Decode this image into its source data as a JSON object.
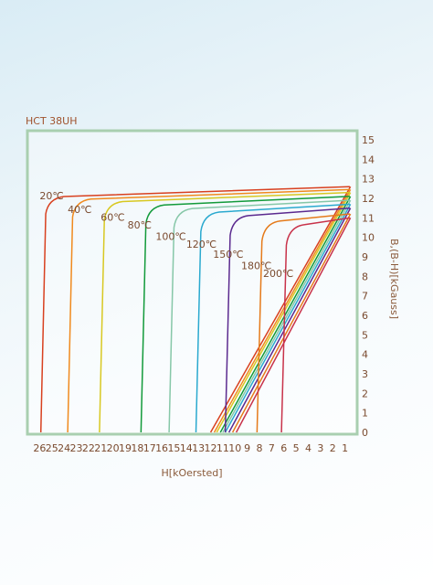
{
  "chart_data": {
    "type": "line",
    "title": "HCT 38UH",
    "xlabel": "H[kOersted]",
    "ylabel": "B,(B-H)[kGauss]",
    "x_direction": "reversed",
    "xlim": [
      0,
      27
    ],
    "ylim": [
      0,
      15
    ],
    "x_ticks": [
      26,
      25,
      24,
      23,
      22,
      21,
      20,
      19,
      18,
      17,
      16,
      15,
      14,
      13,
      12,
      11,
      10,
      9,
      8,
      7,
      6,
      5,
      4,
      3,
      2,
      1
    ],
    "y_ticks": [
      0,
      1,
      2,
      3,
      4,
      5,
      6,
      7,
      8,
      9,
      10,
      11,
      12,
      13,
      14,
      15
    ],
    "plot_border_color": "#a9cfb0",
    "series": [
      {
        "name": "20℃",
        "color": "#d8401f",
        "hcj": 25.5,
        "knee": 12.0,
        "br": 12.6,
        "hcb": 12.0,
        "label_pos": [
          26.0,
          12.1
        ]
      },
      {
        "name": "40℃",
        "color": "#f08a1e",
        "hcj": 23.3,
        "knee": 11.7,
        "br": 12.45,
        "hcb": 11.7,
        "label_pos": [
          23.7,
          11.4
        ]
      },
      {
        "name": "60℃",
        "color": "#d8c821",
        "hcj": 20.7,
        "knee": 11.5,
        "br": 12.3,
        "hcb": 11.5,
        "label_pos": [
          21.0,
          11.0
        ]
      },
      {
        "name": "80℃",
        "color": "#129a3a",
        "hcj": 17.3,
        "knee": 11.2,
        "br": 12.1,
        "hcb": 11.2,
        "label_pos": [
          18.8,
          10.6
        ]
      },
      {
        "name": "100℃",
        "color": "#86c7a8",
        "hcj": 15.0,
        "knee": 11.0,
        "br": 11.9,
        "hcb": 11.0,
        "label_pos": [
          16.5,
          10.0
        ]
      },
      {
        "name": "120℃",
        "color": "#2aa9cf",
        "hcj": 12.8,
        "knee": 10.8,
        "br": 11.7,
        "hcb": 10.8,
        "label_pos": [
          14.0,
          9.6
        ]
      },
      {
        "name": "150℃",
        "color": "#5b2a8f",
        "hcj": 10.4,
        "knee": 10.5,
        "br": 11.5,
        "hcb": 10.5,
        "label_pos": [
          11.8,
          9.1
        ]
      },
      {
        "name": "180℃",
        "color": "#e57a1a",
        "hcj": 7.8,
        "knee": 10.2,
        "br": 11.2,
        "hcb": 10.2,
        "label_pos": [
          9.5,
          8.5
        ]
      },
      {
        "name": "200℃",
        "color": "#c8324a",
        "hcj": 5.8,
        "knee": 9.9,
        "br": 11.0,
        "hcb": 9.9,
        "label_pos": [
          7.7,
          8.1
        ]
      }
    ]
  }
}
